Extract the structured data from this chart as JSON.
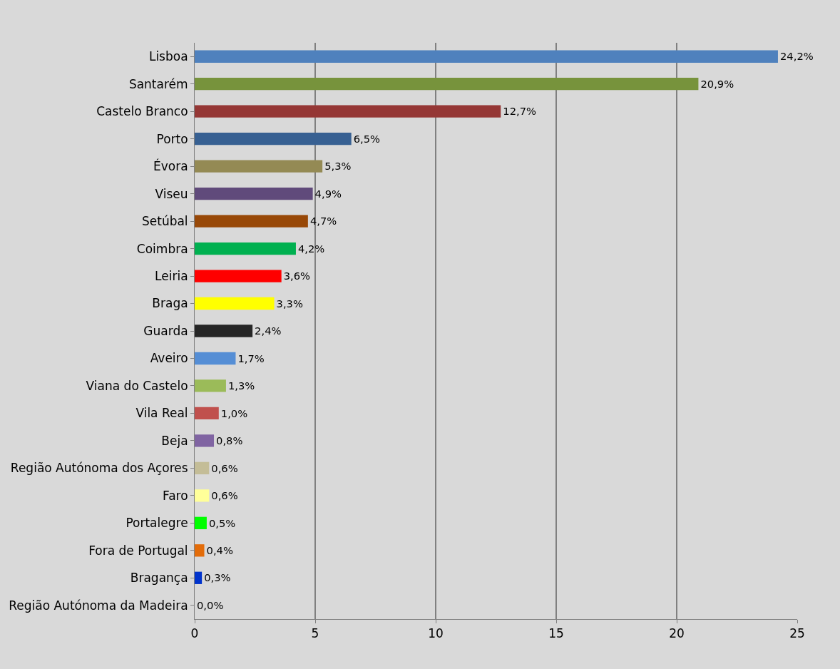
{
  "chart_data": {
    "type": "bar",
    "orientation": "horizontal",
    "categories": [
      "Lisboa",
      "Santarém",
      "Castelo Branco",
      "Porto",
      "Évora",
      "Viseu",
      "Setúbal",
      "Coimbra",
      "Leiria",
      "Braga",
      "Guarda",
      "Aveiro",
      "Viana do Castelo",
      "Vila Real",
      "Beja",
      "Região Autónoma dos Açores",
      "Faro",
      "Portalegre",
      "Fora de Portugal",
      "Bragança",
      "Região Autónoma da Madeira"
    ],
    "values": [
      24.2,
      20.9,
      12.7,
      6.5,
      5.3,
      4.9,
      4.7,
      4.2,
      3.6,
      3.3,
      2.4,
      1.7,
      1.3,
      1.0,
      0.8,
      0.6,
      0.6,
      0.5,
      0.4,
      0.3,
      0.0
    ],
    "value_labels": [
      "24,2%",
      "20,9%",
      "12,7%",
      "6,5%",
      "5,3%",
      "4,9%",
      "4,7%",
      "4,2%",
      "3,6%",
      "3,3%",
      "2,4%",
      "1,7%",
      "1,3%",
      "1,0%",
      "0,8%",
      "0,6%",
      "0,6%",
      "0,5%",
      "0,4%",
      "0,3%",
      "0,0%"
    ],
    "colors": [
      "#4f81bd",
      "#77933c",
      "#953735",
      "#376092",
      "#948a54",
      "#604a7b",
      "#984807",
      "#00b050",
      "#ff0000",
      "#ffff00",
      "#262626",
      "#558ed5",
      "#9bbb59",
      "#c0504d",
      "#8064a2",
      "#c4bd97",
      "#ffff99",
      "#00ff00",
      "#e36c09",
      "#0033cc",
      "#7030a0"
    ],
    "xlim": [
      0,
      25
    ],
    "xticks": [
      0,
      5,
      10,
      15,
      20,
      25
    ],
    "grid": "x",
    "legend": false
  }
}
